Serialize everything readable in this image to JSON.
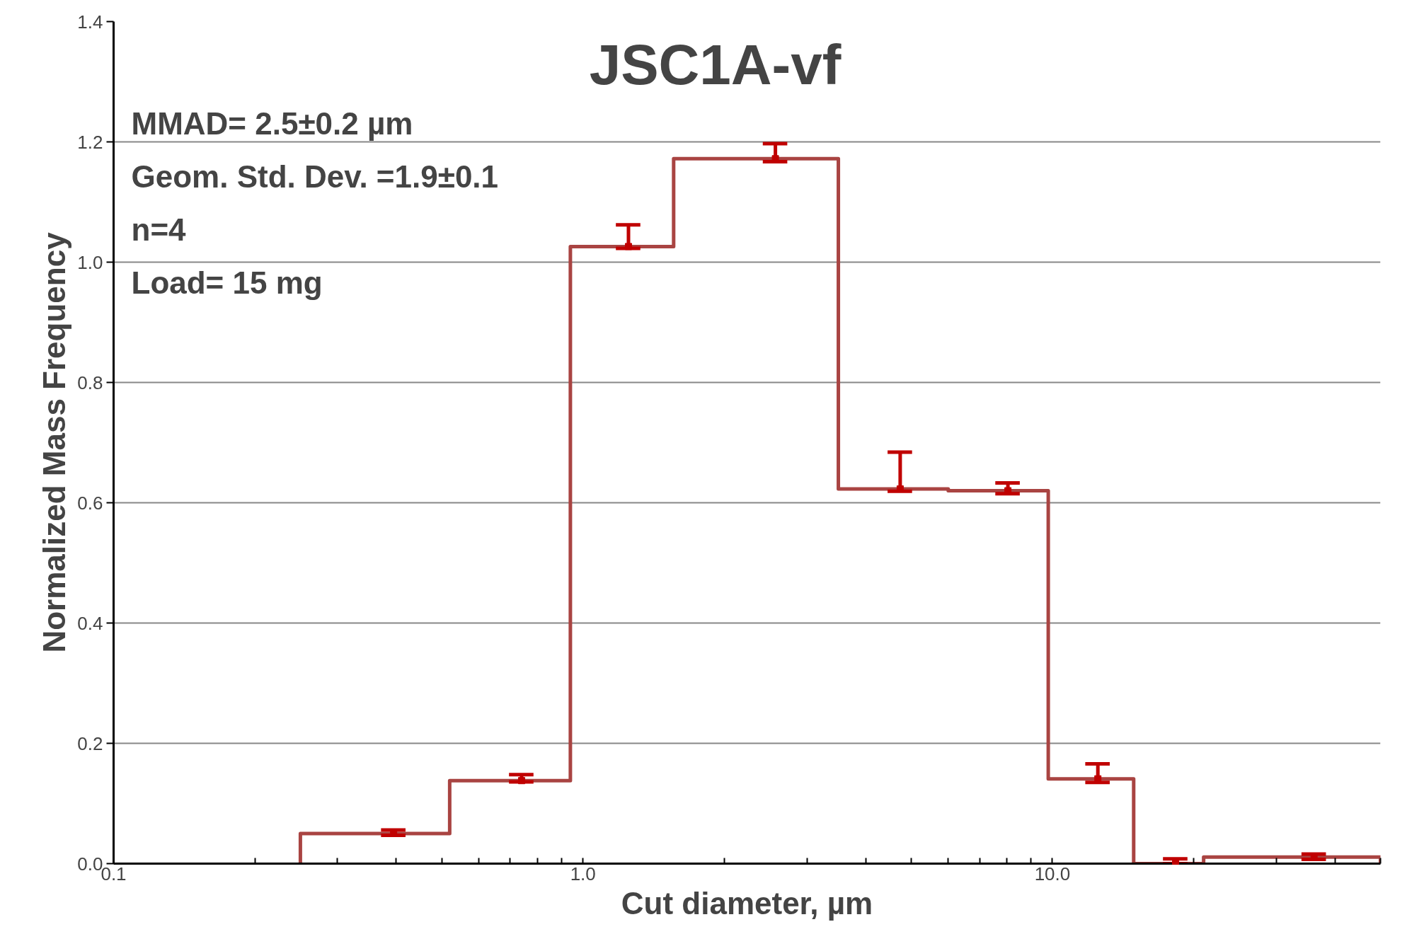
{
  "chart_data": {
    "type": "step",
    "title": "JSC1A-vf",
    "xlabel": "Cut diameter, µm",
    "ylabel": "Normalized Mass Frequency",
    "annotations": [
      "MMAD= 2.5±0.2 µm",
      "Geom. Std. Dev. =1.9±0.1",
      "n=4",
      "Load= 15 mg"
    ],
    "series": [
      {
        "color": "#a94442",
        "x": [
          0.25,
          0.25,
          0.52,
          0.94,
          1.56,
          3.5,
          6.0,
          9.8,
          14.9,
          21,
          50,
          50
        ],
        "values": [
          0,
          0.05,
          0.138,
          1.026,
          1.172,
          0.623,
          0.62,
          0.141,
          0.0,
          0.011,
          0.011,
          0
        ]
      },
      {
        "type": "scatter",
        "marker": "square",
        "color": "#c00000",
        "x": [
          0.395,
          0.74,
          1.25,
          2.57,
          4.74,
          8.04,
          12.5,
          18.3,
          36.1
        ],
        "values": [
          0.05,
          0.138,
          1.026,
          1.172,
          0.623,
          0.62,
          0.141,
          0.004,
          0.011
        ],
        "errors": [
          [
            0.047,
            0.056
          ],
          [
            0.136,
            0.148
          ],
          [
            1.023,
            1.062
          ],
          [
            1.167,
            1.197
          ],
          [
            0.619,
            0.684
          ],
          [
            0.615,
            0.633
          ],
          [
            0.135,
            0.166
          ],
          [
            0.0,
            0.008
          ],
          [
            0.007,
            0.016
          ]
        ]
      }
    ],
    "log": "x",
    "xlim": [
      0.1,
      50
    ],
    "xticks": [
      {
        "value": 0.1,
        "label": "0.1"
      },
      {
        "value": 0.2,
        "label": null
      },
      {
        "value": 0.3,
        "label": null
      },
      {
        "value": 0.4,
        "label": null
      },
      {
        "value": 0.5,
        "label": null
      },
      {
        "value": 0.6,
        "label": null
      },
      {
        "value": 0.7,
        "label": null
      },
      {
        "value": 0.8,
        "label": null
      },
      {
        "value": 0.9,
        "label": null
      },
      {
        "value": 1,
        "label": "1.0"
      },
      {
        "value": 2,
        "label": null
      },
      {
        "value": 3,
        "label": null
      },
      {
        "value": 4,
        "label": null
      },
      {
        "value": 5,
        "label": null
      },
      {
        "value": 6,
        "label": null
      },
      {
        "value": 7,
        "label": null
      },
      {
        "value": 8,
        "label": null
      },
      {
        "value": 9,
        "label": null
      },
      {
        "value": 10,
        "label": "10.0"
      },
      {
        "value": 20,
        "label": null
      },
      {
        "value": 30,
        "label": null
      },
      {
        "value": 40,
        "label": null
      },
      {
        "value": 50,
        "label": null
      }
    ],
    "ylim": [
      0,
      1.4
    ],
    "yticks": [
      {
        "value": 0,
        "label": "0.0"
      },
      {
        "value": 0.2,
        "label": "0.2"
      },
      {
        "value": 0.4,
        "label": "0.4"
      },
      {
        "value": 0.6,
        "label": "0.6"
      },
      {
        "value": 0.8,
        "label": "0.8"
      },
      {
        "value": 1.0,
        "label": "1.0"
      },
      {
        "value": 1.2,
        "label": "1.2"
      },
      {
        "value": 1.4,
        "label": "1.4"
      }
    ],
    "grid": "y"
  }
}
